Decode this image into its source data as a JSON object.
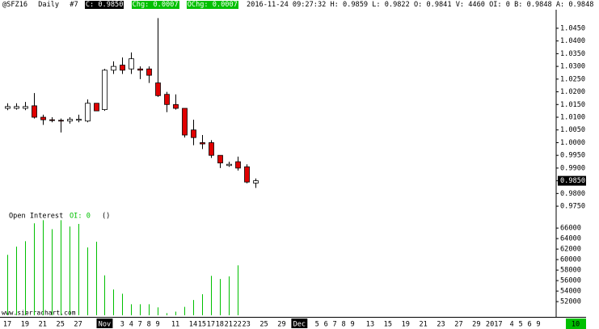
{
  "header": {
    "symbol": "@SFZ16",
    "period": "Daily",
    "chart_number": "#7",
    "close": "C: 0.9850",
    "change": "Chg: 0.0007",
    "open_change": "OChg: 0.0007",
    "details": "2016-11-24 09:27:32 H: 0.9859 L: 0.9822 O: 0.9841 V: 4460 OI: 0 B: 0.9848 A: 0.9848"
  },
  "watermark": "www.sierrachart.com",
  "countdown": "10",
  "chart_data": [
    {
      "type": "candlestick",
      "categories": [
        "17",
        null,
        "19",
        null,
        "21",
        null,
        "25",
        null,
        "27",
        null,
        null,
        "Nov",
        null,
        "3",
        "4",
        "7",
        "8",
        "9",
        null,
        "11",
        null,
        "14",
        "15",
        "17",
        "18",
        "21",
        "22",
        "23",
        null,
        "25",
        null,
        "29",
        null,
        "Dec",
        null,
        "5",
        "6",
        "7",
        "8",
        "9",
        null,
        "13",
        null,
        "15",
        null,
        "19",
        null,
        "21",
        null,
        "23",
        null,
        "27",
        null,
        "29",
        null,
        "2017",
        null,
        "4",
        "5",
        "6",
        "9"
      ],
      "open": [
        1.0135,
        1.0135,
        1.0135,
        1.0145,
        1.01,
        1.009,
        1.0088,
        1.0085,
        1.0088,
        1.0085,
        1.0155,
        1.013,
        1.0285,
        1.0305,
        1.029,
        1.029,
        1.029,
        1.0235,
        1.019,
        1.015,
        1.0135,
        1.005,
        1.0,
        1.0,
        0.995,
        0.991,
        0.9925,
        0.9905,
        0.9841,
        null,
        null,
        null,
        null,
        null,
        null,
        null,
        null,
        null,
        null,
        null,
        null,
        null,
        null,
        null,
        null,
        null,
        null,
        null,
        null,
        null,
        null,
        null,
        null,
        null,
        null,
        null,
        null,
        null,
        null,
        null,
        null
      ],
      "high": [
        1.0155,
        1.0155,
        1.016,
        1.0195,
        1.011,
        1.01,
        1.0095,
        1.01,
        1.011,
        1.017,
        1.0155,
        1.029,
        1.032,
        1.0335,
        1.0355,
        1.03,
        1.03,
        1.049,
        1.02,
        1.019,
        1.0135,
        1.009,
        1.003,
        1.001,
        0.995,
        0.9925,
        0.9945,
        0.9915,
        0.9859,
        null,
        null,
        null,
        null,
        null,
        null,
        null,
        null,
        null,
        null,
        null,
        null,
        null,
        null,
        null,
        null,
        null,
        null,
        null,
        null,
        null,
        null,
        null,
        null,
        null,
        null,
        null,
        null,
        null,
        null,
        null,
        null
      ],
      "low": [
        1.0128,
        1.013,
        1.0128,
        1.0095,
        1.007,
        1.008,
        1.004,
        1.0075,
        1.008,
        1.008,
        1.0125,
        1.0125,
        1.027,
        1.027,
        1.027,
        1.025,
        1.0235,
        1.018,
        1.012,
        1.013,
        1.002,
        0.999,
        0.9975,
        0.994,
        0.99,
        0.9905,
        0.989,
        0.984,
        0.9822,
        null,
        null,
        null,
        null,
        null,
        null,
        null,
        null,
        null,
        null,
        null,
        null,
        null,
        null,
        null,
        null,
        null,
        null,
        null,
        null,
        null,
        null,
        null,
        null,
        null,
        null,
        null,
        null,
        null,
        null,
        null,
        null
      ],
      "close": [
        1.0142,
        1.0142,
        1.0142,
        1.01,
        1.009,
        1.0088,
        1.0085,
        1.0092,
        1.0092,
        1.0155,
        1.0125,
        1.0285,
        1.03,
        1.0285,
        1.033,
        1.0285,
        1.0265,
        1.0185,
        1.015,
        1.0135,
        1.003,
        1.002,
        0.9995,
        0.995,
        0.992,
        0.9915,
        0.99,
        0.9845,
        0.985,
        null,
        null,
        null,
        null,
        null,
        null,
        null,
        null,
        null,
        null,
        null,
        null,
        null,
        null,
        null,
        null,
        null,
        null,
        null,
        null,
        null,
        null,
        null,
        null,
        null,
        null,
        null,
        null,
        null,
        null,
        null,
        null
      ],
      "up_color": "#ffffff",
      "down_color": "#e00000",
      "ylim": [
        0.9728,
        1.0523
      ],
      "yticks": [
        {
          "value": 0.975,
          "label": "0.9750"
        },
        {
          "value": 0.98,
          "label": "0.9800"
        },
        {
          "value": 0.985,
          "label": "0.9850"
        },
        {
          "value": 0.99,
          "label": "0.9900"
        },
        {
          "value": 0.995,
          "label": "0.9950"
        },
        {
          "value": 1.0,
          "label": "1.0000"
        },
        {
          "value": 1.005,
          "label": "1.0050"
        },
        {
          "value": 1.01,
          "label": "1.0100"
        },
        {
          "value": 1.015,
          "label": "1.0150"
        },
        {
          "value": 1.02,
          "label": "1.0200"
        },
        {
          "value": 1.025,
          "label": "1.0250"
        },
        {
          "value": 1.03,
          "label": "1.0300"
        },
        {
          "value": 1.035,
          "label": "1.0350"
        },
        {
          "value": 1.04,
          "label": "1.0400"
        },
        {
          "value": 1.045,
          "label": "1.0450"
        }
      ],
      "current_price": {
        "value": 0.985,
        "label": "0.9850"
      },
      "grid": false
    },
    {
      "type": "bar",
      "title": "Open Interest",
      "subtitle": "OI: 0",
      "annotation": "()",
      "color": "#00c000",
      "values": [
        60900,
        62460,
        63500,
        66900,
        67500,
        65800,
        67500,
        66300,
        66800,
        62300,
        63400,
        57000,
        54300,
        53500,
        51500,
        51500,
        51500,
        50900,
        49800,
        50100,
        51000,
        52300,
        53400,
        56900,
        56300,
        56800,
        58900,
        null,
        null,
        null,
        null,
        null,
        null,
        null,
        null,
        null,
        null,
        null,
        null,
        null,
        null,
        null,
        null,
        null,
        null,
        null,
        null,
        null,
        null,
        null,
        null,
        null,
        null,
        null,
        null,
        null,
        null,
        null,
        null,
        null,
        null
      ],
      "ylim": [
        49400,
        69100
      ],
      "yticks": [
        52000,
        54000,
        56000,
        58000,
        60000,
        62000,
        64000,
        66000
      ],
      "grid": false
    }
  ]
}
